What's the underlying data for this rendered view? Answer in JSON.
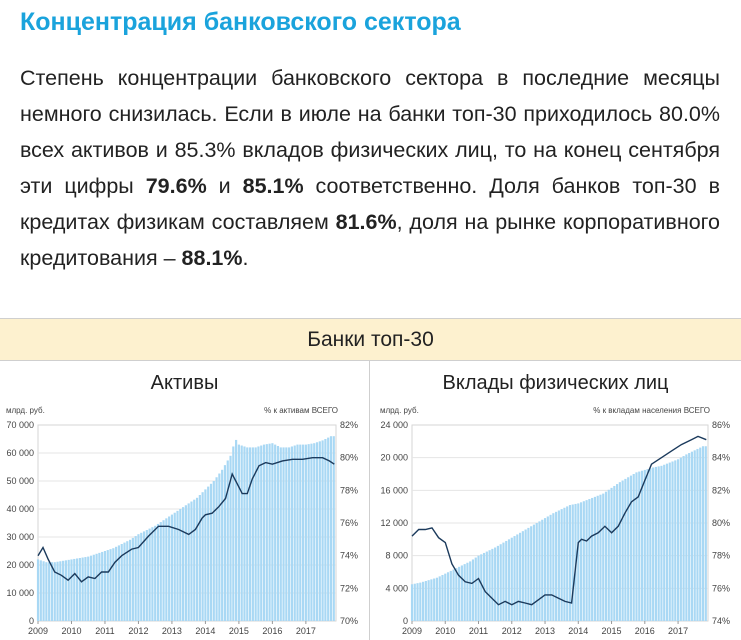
{
  "page": {
    "title": "Концентрация банковского сектора",
    "paragraph": {
      "p1": "Степень концентрации банковского сектора в последние месяцы немного снизилась. Если в июле на банки топ-30 приходилось 80.0% всех активов и 85.3% вкладов физических лиц, то на конец сентября эти цифры ",
      "v1": "79.6%",
      "p2": " и ",
      "v2": "85.1%",
      "p3": " соответственно. Доля банков топ-30 в кредитах физикам составляем ",
      "v3": "81.6%",
      "p4": ", доля на рынке корпоративного кредитования – ",
      "v4": "88.1%",
      "p5": "."
    },
    "band_title": "Банки топ-30"
  },
  "colors": {
    "bar": "#a9d8f4",
    "line": "#1b3a5c",
    "title": "#1aa3dc",
    "band": "#fdf1cf"
  },
  "chart_data": [
    {
      "type": "bar+line",
      "title": "Активы",
      "left_unit": "млрд. руб.",
      "right_unit": "% к активам ВСЕГО",
      "left_ticks": [
        "0",
        "10 000",
        "20 000",
        "30 000",
        "40 000",
        "50 000",
        "60 000",
        "70 000"
      ],
      "right_ticks": [
        "70%",
        "72%",
        "74%",
        "76%",
        "78%",
        "80%",
        "82%"
      ],
      "x_ticks": [
        "2009",
        "2010",
        "2011",
        "2012",
        "2013",
        "2014",
        "2015",
        "2016",
        "2017"
      ],
      "ylim_left": [
        0,
        70000
      ],
      "ylim_right": [
        70,
        82
      ],
      "x_range": [
        2009,
        2017.9
      ],
      "bars": {
        "x": [
          2009,
          2009.25,
          2009.5,
          2009.75,
          2010,
          2010.25,
          2010.5,
          2010.75,
          2011,
          2011.25,
          2011.5,
          2011.75,
          2012,
          2012.25,
          2012.5,
          2012.75,
          2013,
          2013.25,
          2013.5,
          2013.75,
          2014,
          2014.25,
          2014.5,
          2014.75,
          2014.9,
          2015,
          2015.25,
          2015.5,
          2015.75,
          2016,
          2016.25,
          2016.5,
          2016.75,
          2017,
          2017.25,
          2017.5,
          2017.75
        ],
        "values": [
          22000,
          21000,
          21000,
          21500,
          22000,
          22500,
          23000,
          24000,
          25000,
          26000,
          27500,
          29000,
          31000,
          32500,
          34000,
          36000,
          38000,
          40000,
          42000,
          44000,
          47000,
          50000,
          54000,
          59000,
          65000,
          63000,
          62000,
          62000,
          63000,
          63500,
          62000,
          62000,
          63000,
          63000,
          63500,
          64500,
          66000
        ]
      },
      "line": {
        "x": [
          2009,
          2009.15,
          2009.3,
          2009.5,
          2009.7,
          2009.9,
          2010.1,
          2010.3,
          2010.5,
          2010.7,
          2010.9,
          2011.1,
          2011.3,
          2011.5,
          2011.8,
          2012,
          2012.3,
          2012.6,
          2012.9,
          2013.2,
          2013.5,
          2013.7,
          2013.9,
          2014,
          2014.2,
          2014.4,
          2014.6,
          2014.8,
          2015,
          2015.1,
          2015.25,
          2015.4,
          2015.6,
          2015.8,
          2016,
          2016.3,
          2016.6,
          2016.9,
          2017.2,
          2017.5,
          2017.7,
          2017.85
        ],
        "values": [
          74.0,
          74.5,
          73.8,
          73.0,
          72.8,
          72.5,
          72.9,
          72.4,
          72.7,
          72.6,
          73.0,
          73.0,
          73.6,
          74.0,
          74.4,
          74.5,
          75.2,
          75.8,
          75.8,
          75.6,
          75.3,
          75.6,
          76.3,
          76.5,
          76.6,
          77.0,
          77.5,
          79.0,
          78.2,
          77.8,
          77.8,
          78.7,
          79.5,
          79.7,
          79.6,
          79.8,
          79.9,
          79.9,
          80.0,
          80.0,
          79.8,
          79.6
        ]
      }
    },
    {
      "type": "bar+line",
      "title": "Вклады физических лиц",
      "left_unit": "млрд. руб.",
      "right_unit": "% к вкладам населения ВСЕГО",
      "left_ticks": [
        "0",
        "4 000",
        "8 000",
        "12 000",
        "16 000",
        "20 000",
        "24 000"
      ],
      "right_ticks": [
        "74%",
        "76%",
        "78%",
        "80%",
        "82%",
        "84%",
        "86%"
      ],
      "x_ticks": [
        "2009",
        "2010",
        "2011",
        "2012",
        "2013",
        "2014",
        "2015",
        "2016",
        "2017"
      ],
      "ylim_left": [
        0,
        24000
      ],
      "ylim_right": [
        74,
        86
      ],
      "x_range": [
        2009,
        2017.9
      ],
      "bars": {
        "x": [
          2009,
          2009.25,
          2009.5,
          2009.75,
          2010,
          2010.25,
          2010.5,
          2010.75,
          2011,
          2011.25,
          2011.5,
          2011.75,
          2012,
          2012.25,
          2012.5,
          2012.75,
          2013,
          2013.25,
          2013.5,
          2013.75,
          2014,
          2014.25,
          2014.5,
          2014.75,
          2015,
          2015.25,
          2015.5,
          2015.75,
          2016,
          2016.25,
          2016.5,
          2016.75,
          2017,
          2017.25,
          2017.5,
          2017.75
        ],
        "values": [
          4500,
          4700,
          5000,
          5300,
          5800,
          6300,
          6800,
          7300,
          8000,
          8500,
          9000,
          9600,
          10200,
          10800,
          11400,
          12000,
          12600,
          13200,
          13700,
          14200,
          14400,
          14800,
          15200,
          15600,
          16300,
          17000,
          17600,
          18200,
          18500,
          18800,
          19000,
          19400,
          19800,
          20400,
          20900,
          21400
        ]
      },
      "line": {
        "x": [
          2009,
          2009.2,
          2009.4,
          2009.6,
          2009.8,
          2010,
          2010.2,
          2010.4,
          2010.6,
          2010.8,
          2011,
          2011.2,
          2011.4,
          2011.6,
          2011.8,
          2012,
          2012.2,
          2012.4,
          2012.6,
          2012.8,
          2013,
          2013.2,
          2013.4,
          2013.6,
          2013.8,
          2014,
          2014.1,
          2014.25,
          2014.4,
          2014.6,
          2014.8,
          2015,
          2015.2,
          2015.4,
          2015.6,
          2015.8,
          2016,
          2016.2,
          2016.5,
          2016.8,
          2017.1,
          2017.4,
          2017.6,
          2017.85
        ],
        "values": [
          79.2,
          79.6,
          79.6,
          79.7,
          79.1,
          78.8,
          77.5,
          76.8,
          76.4,
          76.3,
          76.6,
          75.8,
          75.4,
          75.0,
          75.2,
          75.0,
          75.2,
          75.1,
          75.0,
          75.3,
          75.6,
          75.6,
          75.4,
          75.2,
          75.1,
          78.8,
          79.0,
          78.9,
          79.2,
          79.4,
          79.8,
          79.4,
          79.8,
          80.6,
          81.3,
          81.6,
          82.6,
          83.6,
          84.0,
          84.4,
          84.8,
          85.1,
          85.3,
          85.1
        ]
      }
    }
  ]
}
